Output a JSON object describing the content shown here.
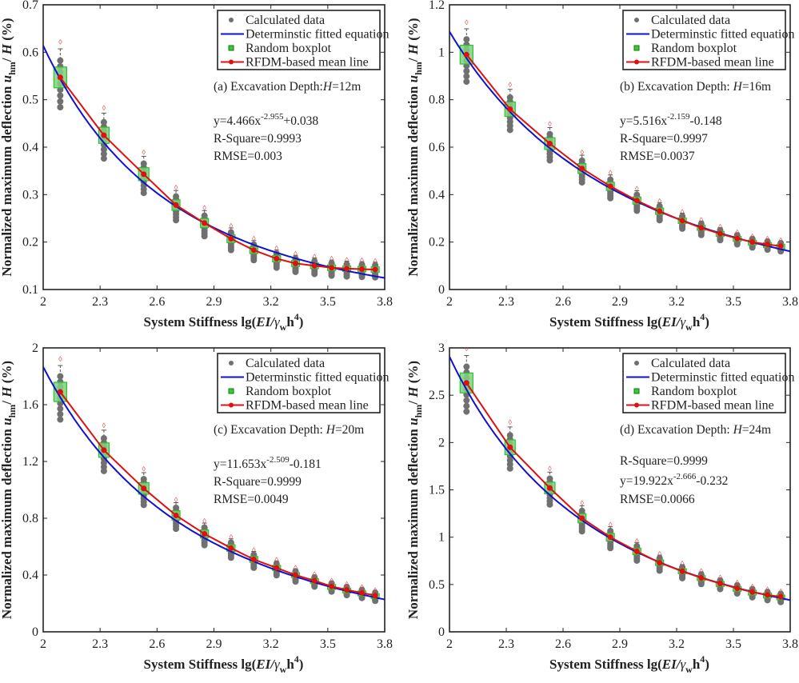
{
  "chart_data": [
    {
      "type": "scatter",
      "panel": "a",
      "title_prefix": "(a) Excavation Depth:",
      "title_var": "H",
      "title_suffix": "=12m",
      "equation": {
        "lead": "y=4.466x",
        "exp": "-2.955",
        "tail": "+0.038",
        "a": 4.466,
        "b": -2.955,
        "c": 0.038
      },
      "r_square": "R-Square=0.9993",
      "rmse": "RMSE=0.003",
      "ann_order": [
        "equation",
        "r_square",
        "rmse"
      ],
      "xlim": [
        2,
        3.8
      ],
      "ylim": [
        0.1,
        0.7
      ],
      "xticks": [
        "2",
        "2.3",
        "2.6",
        "2.9",
        "3.2",
        "3.5",
        "3.8"
      ],
      "yticks": [
        "0.1",
        "0.2",
        "0.3",
        "0.4",
        "0.5",
        "0.6",
        "0.7"
      ],
      "x": [
        2.09,
        2.32,
        2.53,
        2.7,
        2.85,
        2.99,
        3.11,
        3.23,
        3.33,
        3.43,
        3.52,
        3.6,
        3.68,
        3.75
      ],
      "mean": [
        0.547,
        0.425,
        0.343,
        0.278,
        0.24,
        0.207,
        0.183,
        0.165,
        0.155,
        0.15,
        0.146,
        0.144,
        0.143,
        0.142
      ]
    },
    {
      "type": "scatter",
      "panel": "b",
      "title_prefix": "(b) Excavation Depth: ",
      "title_var": "H",
      "title_suffix": "=16m",
      "equation": {
        "lead": "y=5.516x",
        "exp": "-2.159",
        "tail": "-0.148",
        "a": 5.516,
        "b": -2.159,
        "c": -0.148
      },
      "r_square": "R-Square=0.9997",
      "rmse": "RMSE=0.0037",
      "ann_order": [
        "equation",
        "r_square",
        "rmse"
      ],
      "xlim": [
        2,
        3.8
      ],
      "ylim": [
        0,
        1.2
      ],
      "xticks": [
        "2",
        "2.3",
        "2.6",
        "2.9",
        "3.2",
        "3.5",
        "3.8"
      ],
      "yticks": [
        "0",
        "0.2",
        "0.4",
        "0.6",
        "0.8",
        "1",
        "1.2"
      ],
      "x": [
        2.09,
        2.32,
        2.53,
        2.7,
        2.85,
        2.99,
        3.11,
        3.23,
        3.33,
        3.43,
        3.52,
        3.6,
        3.68,
        3.75
      ],
      "mean": [
        0.99,
        0.76,
        0.615,
        0.51,
        0.435,
        0.375,
        0.33,
        0.29,
        0.26,
        0.235,
        0.215,
        0.2,
        0.19,
        0.183
      ]
    },
    {
      "type": "scatter",
      "panel": "c",
      "title_prefix": "(c) Excavation Depth: ",
      "title_var": "H",
      "title_suffix": "=20m",
      "equation": {
        "lead": "y=11.653x",
        "exp": "-2.509",
        "tail": "-0.181",
        "a": 11.653,
        "b": -2.509,
        "c": -0.181
      },
      "r_square": "R-Square=0.9999",
      "rmse": "RMSE=0.0049",
      "ann_order": [
        "equation",
        "r_square",
        "rmse"
      ],
      "xlim": [
        2,
        3.8
      ],
      "ylim": [
        0,
        2
      ],
      "xticks": [
        "2",
        "2.3",
        "2.6",
        "2.9",
        "3.2",
        "3.5",
        "3.8"
      ],
      "yticks": [
        "0",
        "0.4",
        "0.8",
        "1.2",
        "1.6",
        "2"
      ],
      "x": [
        2.09,
        2.32,
        2.53,
        2.7,
        2.85,
        2.99,
        3.11,
        3.23,
        3.33,
        3.43,
        3.52,
        3.6,
        3.68,
        3.75
      ],
      "mean": [
        1.69,
        1.28,
        1.01,
        0.82,
        0.69,
        0.59,
        0.51,
        0.45,
        0.4,
        0.36,
        0.32,
        0.295,
        0.275,
        0.255
      ]
    },
    {
      "type": "scatter",
      "panel": "d",
      "title_prefix": "(d) Excavation Depth: ",
      "title_var": "H",
      "title_suffix": "=24m",
      "equation": {
        "lead": "y=19.922x",
        "exp": "-2.666",
        "tail": "-0.232",
        "a": 19.922,
        "b": -2.666,
        "c": -0.232
      },
      "r_square": "R-Square=0.9999",
      "rmse": "RMSE=0.0066",
      "ann_order": [
        "r_square",
        "equation",
        "rmse"
      ],
      "xlim": [
        2,
        3.8
      ],
      "ylim": [
        0,
        3
      ],
      "xticks": [
        "2",
        "2.3",
        "2.6",
        "2.9",
        "3.2",
        "3.5",
        "3.8"
      ],
      "yticks": [
        "0",
        "0.5",
        "1",
        "1.5",
        "2",
        "2.5",
        "3"
      ],
      "x": [
        2.09,
        2.32,
        2.53,
        2.7,
        2.85,
        2.99,
        3.11,
        3.23,
        3.33,
        3.43,
        3.52,
        3.6,
        3.68,
        3.75
      ],
      "mean": [
        2.63,
        1.95,
        1.52,
        1.2,
        1.0,
        0.85,
        0.73,
        0.64,
        0.57,
        0.51,
        0.46,
        0.42,
        0.39,
        0.37
      ]
    }
  ],
  "legend": [
    {
      "label": "Calculated data",
      "symbol": "gray-dot"
    },
    {
      "label": "Determinstic fitted equation",
      "symbol": "blue-line"
    },
    {
      "label": "Random boxplot",
      "symbol": "green-square"
    },
    {
      "label": "RFDM-based mean line",
      "symbol": "red-line-dot"
    }
  ],
  "axis_labels": {
    "x_main": "System Stiffness lg(",
    "x_ei": "EI/",
    "x_gamma": "γ",
    "x_w": "w",
    "x_h": "h",
    "x_4": "4",
    "x_close": ")",
    "y_main": "Normalized maximum deflection  ",
    "y_u": "u",
    "y_hm": "hm",
    "y_slash": "/ ",
    "y_H": "H",
    "y_pct": " (%)"
  },
  "colors": {
    "fitted": "#1010d0",
    "mean_line": "#e01010",
    "box": "#2fbf2f",
    "box_fill": "#7ed37e",
    "calc": "#707070",
    "outlier": "#e04040"
  }
}
